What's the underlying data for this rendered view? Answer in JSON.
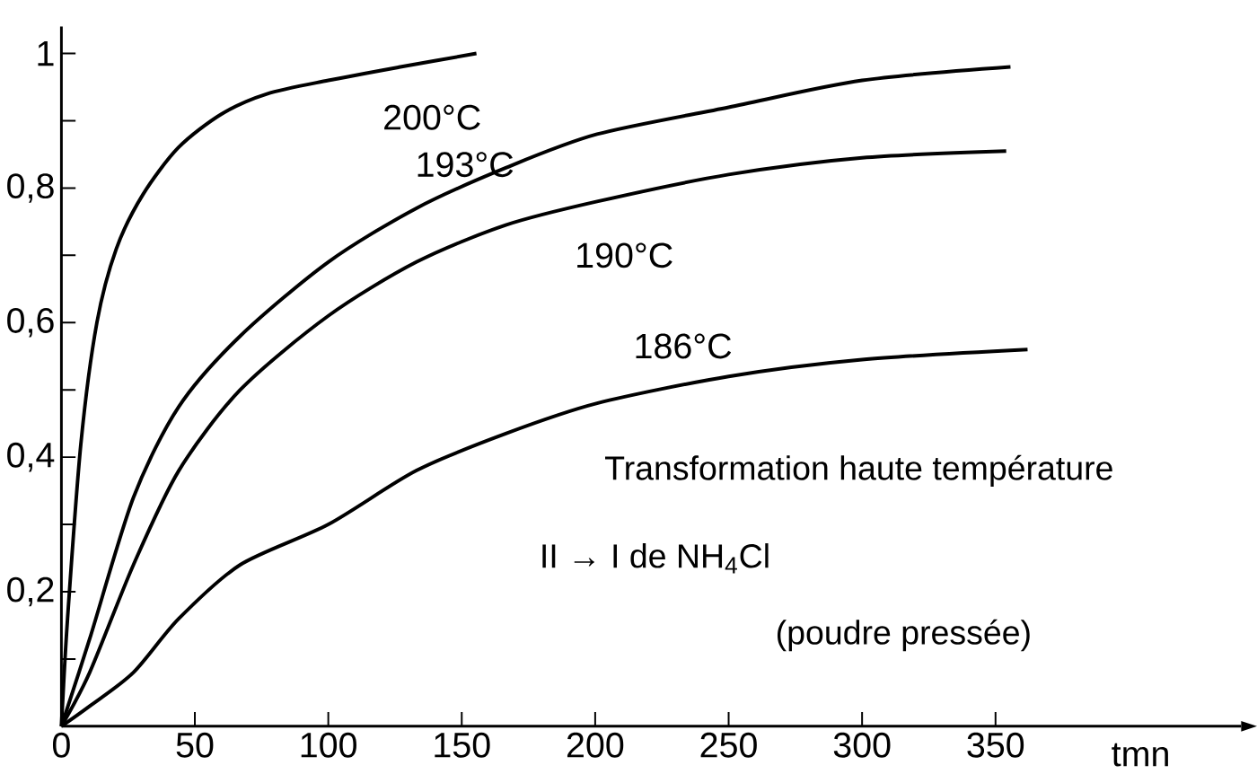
{
  "chart_data": {
    "type": "line",
    "xlabel": "tmn",
    "xlim": [
      0,
      442
    ],
    "ylim": [
      0,
      1.04
    ],
    "xticks": [
      0,
      50,
      100,
      150,
      200,
      250,
      300,
      350
    ],
    "yticks": [
      {
        "value": 0.1,
        "label": null
      },
      {
        "value": 0.2,
        "label": "0,2"
      },
      {
        "value": 0.3,
        "label": null
      },
      {
        "value": 0.4,
        "label": "0,4"
      },
      {
        "value": 0.5,
        "label": null
      },
      {
        "value": 0.6,
        "label": "0,6"
      },
      {
        "value": 0.7,
        "label": null
      },
      {
        "value": 0.8,
        "label": "0,8"
      },
      {
        "value": 0.9,
        "label": null
      },
      {
        "value": 1,
        "label": "1"
      }
    ],
    "grid": false,
    "legend": false,
    "marker": "none",
    "line_style": "solid",
    "series": [
      {
        "name": "200°C",
        "color": "#000000",
        "x": [
          0,
          2.3,
          7.3,
          13.3,
          20.6,
          30.5,
          43.8,
          60,
          77,
          100,
          127,
          155.5
        ],
        "values": [
          0,
          0.16,
          0.42,
          0.6,
          0.71,
          0.79,
          0.86,
          0.91,
          0.94,
          0.96,
          0.98,
          1.0
        ]
      },
      {
        "name": "193°C",
        "color": "#000000",
        "x": [
          0,
          10.6,
          27,
          44,
          67,
          100,
          133,
          166.5,
          200.7,
          250,
          300,
          355.6
        ],
        "values": [
          0,
          0.13,
          0.34,
          0.475,
          0.58,
          0.69,
          0.77,
          0.83,
          0.88,
          0.92,
          0.96,
          0.98
        ]
      },
      {
        "name": "190°C",
        "color": "#000000",
        "x": [
          0,
          10.6,
          27,
          44,
          67,
          100,
          133,
          166.5,
          200.7,
          250,
          300,
          354
        ],
        "values": [
          0,
          0.08,
          0.24,
          0.38,
          0.5,
          0.61,
          0.69,
          0.745,
          0.78,
          0.82,
          0.845,
          0.855
        ]
      },
      {
        "name": "186°C",
        "color": "#000000",
        "x": [
          0,
          10.6,
          27,
          44,
          67,
          100,
          133,
          166.5,
          200.7,
          250,
          300,
          362
        ],
        "values": [
          0,
          0.03,
          0.08,
          0.16,
          0.24,
          0.3,
          0.38,
          0.435,
          0.48,
          0.52,
          0.545,
          0.56
        ]
      }
    ],
    "annotations": [
      "Transformation haute température",
      "II → I de NH$_{4}$Cl",
      "(poudre pressée)"
    ]
  }
}
